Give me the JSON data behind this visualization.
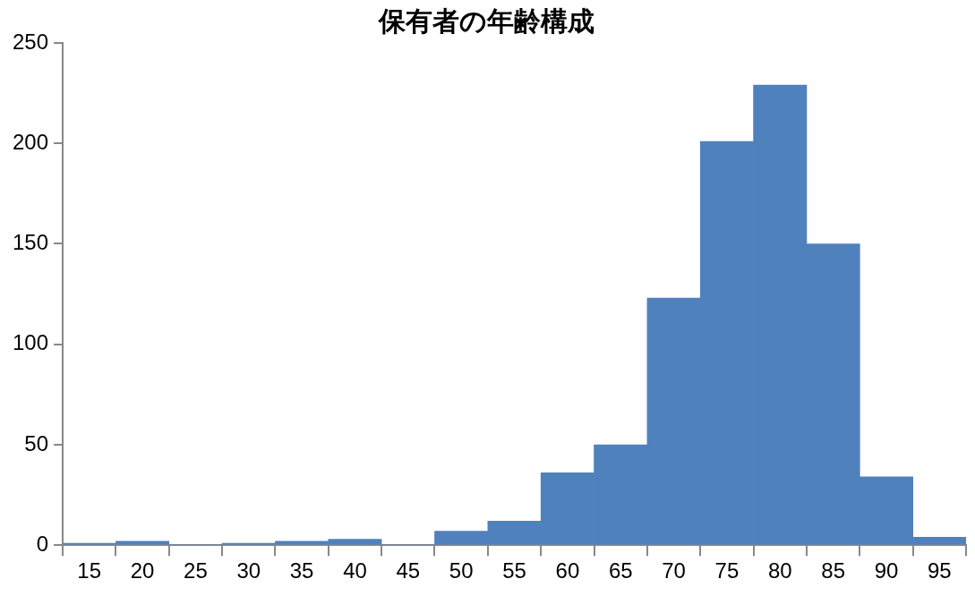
{
  "chart_data": {
    "type": "bar",
    "title": "保有者の年齢構成",
    "categories": [
      "15",
      "20",
      "25",
      "30",
      "35",
      "40",
      "45",
      "50",
      "55",
      "60",
      "65",
      "70",
      "75",
      "80",
      "85",
      "90",
      "95"
    ],
    "values": [
      1,
      2,
      0,
      1,
      2,
      3,
      0,
      7,
      12,
      36,
      50,
      123,
      201,
      229,
      150,
      34,
      4
    ],
    "color": "#4f81bd",
    "ylim": [
      0,
      250
    ],
    "yticks": [
      0,
      50,
      100,
      150,
      200,
      250
    ],
    "grid": false,
    "legend": false
  }
}
